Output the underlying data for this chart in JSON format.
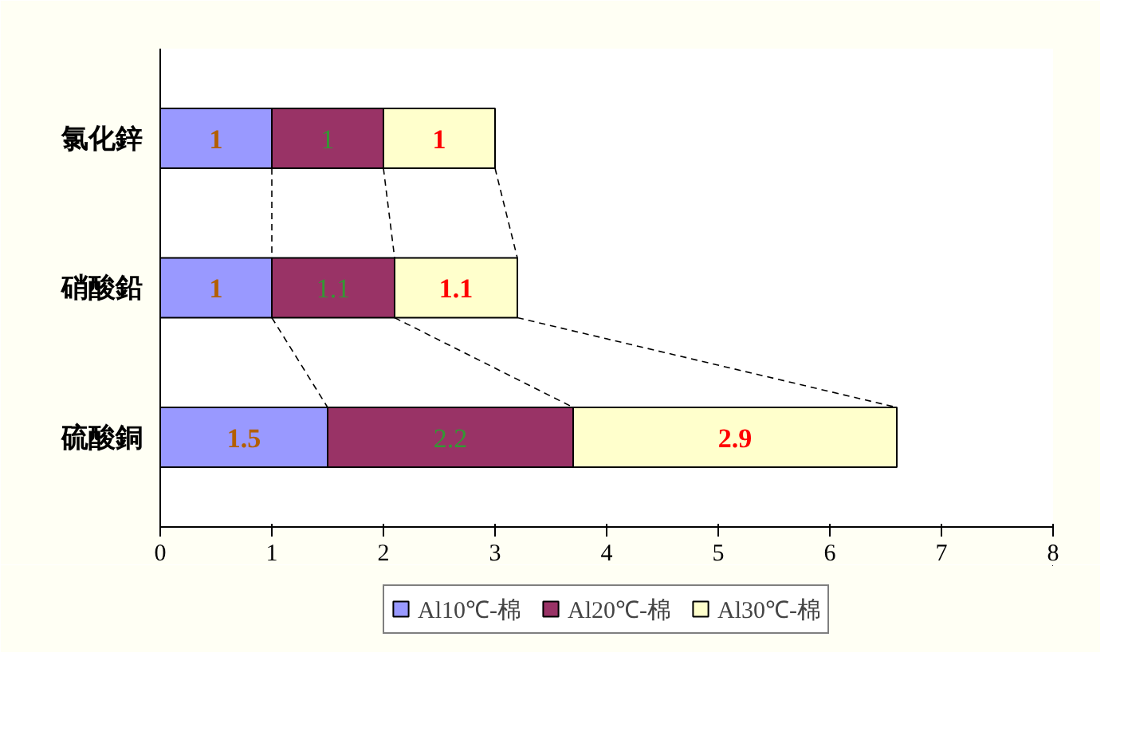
{
  "chart_data": {
    "type": "bar",
    "orientation": "horizontal",
    "stacked": true,
    "categories": [
      "氯化鋅",
      "硝酸鉛",
      "硫酸銅"
    ],
    "series": [
      {
        "name": "Al10℃-棉",
        "color": "#9999ff",
        "values": [
          1,
          1,
          1.5
        ]
      },
      {
        "name": "Al20℃-棉",
        "color": "#993366",
        "values": [
          1,
          1.1,
          2.2
        ]
      },
      {
        "name": "Al30℃-棉",
        "color": "#ffffcc",
        "values": [
          1,
          1.1,
          2.9
        ]
      }
    ],
    "xlim": [
      0,
      8
    ],
    "xticks": [
      0,
      1,
      2,
      3,
      4,
      5,
      6,
      7,
      8
    ],
    "data_labels": true,
    "grid": false,
    "legend": "bottom"
  }
}
